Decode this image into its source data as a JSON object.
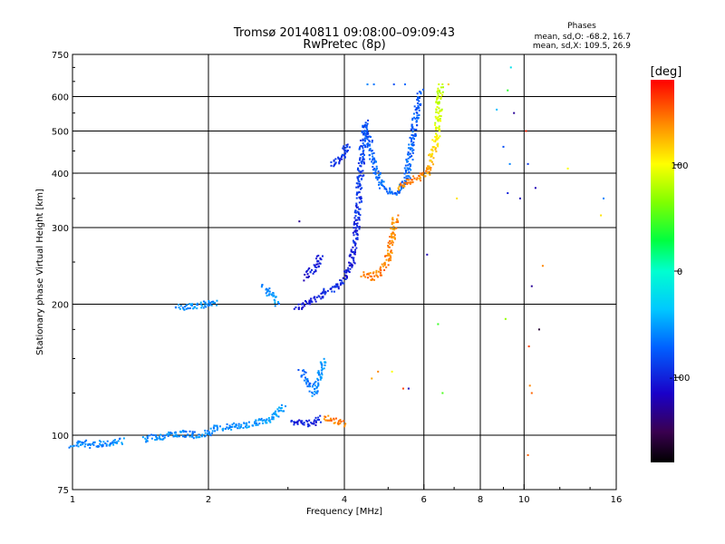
{
  "chart_data": {
    "type": "scatter",
    "title": "Tromsø 20140811 09:08:00–09:09:43",
    "subtitle": "RwPretec (8p)",
    "stats": {
      "heading": "Phases",
      "line_o": "mean, sd,O: -68.2, 16.7",
      "line_x": "mean, sd,X: 109.5, 26.9"
    },
    "xlabel": "Frequency [MHz]",
    "ylabel": "Stationary phase Virtual Height [km]",
    "x_scale": "log",
    "y_scale": "log",
    "xlim": [
      1,
      16
    ],
    "ylim": [
      75,
      750
    ],
    "x_ticks": [
      1,
      2,
      4,
      6,
      8,
      10,
      16
    ],
    "x_tick_labels": [
      "1",
      "2",
      "4",
      "6",
      "8",
      "10",
      "16"
    ],
    "y_ticks": [
      75,
      100,
      200,
      300,
      400,
      500,
      600,
      750
    ],
    "y_tick_labels": [
      "75",
      "100",
      "200",
      "300",
      "400",
      "500",
      "600",
      "750"
    ],
    "grid_x": [
      2,
      4,
      6,
      8,
      10
    ],
    "grid_y": [
      100,
      200,
      300,
      400,
      500,
      600
    ],
    "colorbar": {
      "label": "[deg]",
      "range": [
        -180,
        180
      ],
      "ticks": [
        100,
        0,
        -100
      ],
      "tick_labels": [
        "100",
        "0",
        "-100"
      ]
    },
    "segments": [
      {
        "points": [
          [
            1.0,
            95,
            -60
          ],
          [
            1.05,
            96,
            -62
          ],
          [
            1.1,
            95,
            -58
          ],
          [
            1.2,
            96,
            -60
          ],
          [
            1.3,
            97,
            -55
          ]
        ]
      },
      {
        "points": [
          [
            1.45,
            98,
            -58
          ],
          [
            1.55,
            99,
            -62
          ],
          [
            1.65,
            100,
            -56
          ],
          [
            1.8,
            101,
            -60
          ],
          [
            1.9,
            100,
            -58
          ],
          [
            2.0,
            101,
            -62
          ],
          [
            2.05,
            103,
            -55
          ],
          [
            2.1,
            104,
            -58
          ]
        ]
      },
      {
        "points": [
          [
            2.1,
            104,
            -55
          ],
          [
            2.3,
            105,
            -57
          ],
          [
            2.5,
            106,
            -52
          ],
          [
            2.7,
            108,
            -55
          ],
          [
            2.85,
            112,
            -50
          ],
          [
            2.95,
            116,
            -48
          ]
        ]
      },
      {
        "points": [
          [
            3.05,
            108,
            -95
          ],
          [
            3.15,
            107,
            -100
          ],
          [
            3.3,
            106,
            -98
          ],
          [
            3.45,
            107,
            -102
          ],
          [
            3.55,
            110,
            -96
          ]
        ]
      },
      {
        "points": [
          [
            3.2,
            140,
            -70
          ],
          [
            3.35,
            130,
            -65
          ],
          [
            3.45,
            125,
            -60
          ],
          [
            3.55,
            140,
            -55
          ],
          [
            3.6,
            150,
            -50
          ]
        ]
      },
      {
        "points": [
          [
            3.6,
            110,
            140
          ],
          [
            3.75,
            108,
            145
          ],
          [
            3.9,
            107,
            142
          ],
          [
            4.0,
            106,
            150
          ]
        ]
      },
      {
        "points": [
          [
            1.72,
            196,
            -60
          ],
          [
            2.0,
            200,
            -55
          ],
          [
            2.1,
            201,
            -58
          ]
        ]
      },
      {
        "points": [
          [
            2.65,
            220,
            -60
          ],
          [
            2.75,
            210,
            -55
          ],
          [
            2.85,
            200,
            -58
          ]
        ]
      },
      {
        "points": [
          [
            3.15,
            195,
            -100
          ],
          [
            3.25,
            200,
            -110
          ],
          [
            3.4,
            205,
            -105
          ],
          [
            3.6,
            212,
            -100
          ],
          [
            3.8,
            218,
            -95
          ],
          [
            4.0,
            228,
            -100
          ],
          [
            4.15,
            250,
            -105
          ],
          [
            4.22,
            280,
            -100
          ],
          [
            4.28,
            320,
            -95
          ],
          [
            4.33,
            380,
            -90
          ],
          [
            4.38,
            450,
            -85
          ],
          [
            4.45,
            520,
            -80
          ],
          [
            4.55,
            470,
            -75
          ],
          [
            4.7,
            400,
            -70
          ],
          [
            4.9,
            370,
            -68
          ],
          [
            5.1,
            360,
            -70
          ],
          [
            5.3,
            362,
            -72
          ],
          [
            5.5,
            390,
            -70
          ],
          [
            5.65,
            470,
            -72
          ],
          [
            5.8,
            560,
            -75
          ],
          [
            5.9,
            620,
            -78
          ]
        ]
      },
      {
        "points": [
          [
            3.3,
            230,
            -110
          ],
          [
            3.4,
            240,
            -105
          ],
          [
            3.5,
            250,
            -100
          ],
          [
            3.55,
            260,
            -98
          ]
        ]
      },
      {
        "points": [
          [
            4.4,
            235,
            140
          ],
          [
            4.6,
            230,
            145
          ],
          [
            4.8,
            238,
            142
          ],
          [
            5.0,
            255,
            140
          ],
          [
            5.1,
            280,
            138
          ],
          [
            5.2,
            320,
            135
          ]
        ]
      },
      {
        "points": [
          [
            5.3,
            370,
            140
          ],
          [
            5.5,
            380,
            145
          ],
          [
            5.8,
            390,
            140
          ],
          [
            6.1,
            400,
            138
          ],
          [
            6.2,
            420,
            130
          ],
          [
            6.35,
            460,
            110
          ],
          [
            6.45,
            520,
            90
          ],
          [
            6.5,
            600,
            85
          ],
          [
            6.55,
            640,
            80
          ]
        ]
      },
      {
        "points": [
          [
            3.75,
            420,
            -95
          ],
          [
            3.9,
            430,
            -100
          ],
          [
            4.0,
            440,
            -92
          ],
          [
            4.05,
            470,
            -90
          ]
        ]
      }
    ],
    "scatter": [
      [
        3.18,
        310,
        -130
      ],
      [
        4.5,
        640,
        -60
      ],
      [
        4.65,
        640,
        -65
      ],
      [
        5.15,
        640,
        -80
      ],
      [
        5.45,
        640,
        -70
      ],
      [
        6.1,
        260,
        -120
      ],
      [
        6.45,
        180,
        45
      ],
      [
        6.6,
        125,
        50
      ],
      [
        6.8,
        640,
        120
      ],
      [
        7.1,
        350,
        110
      ],
      [
        5.1,
        140,
        100
      ],
      [
        4.6,
        135,
        130
      ],
      [
        4.75,
        140,
        140
      ],
      [
        5.4,
        128,
        160
      ],
      [
        5.55,
        128,
        -120
      ],
      [
        8.7,
        560,
        -40
      ],
      [
        9.0,
        460,
        -80
      ],
      [
        9.2,
        620,
        40
      ],
      [
        9.3,
        420,
        -60
      ],
      [
        9.1,
        185,
        70
      ],
      [
        9.2,
        360,
        -100
      ],
      [
        9.35,
        700,
        -20
      ],
      [
        9.5,
        550,
        -130
      ],
      [
        9.8,
        350,
        -120
      ],
      [
        10.1,
        500,
        170
      ],
      [
        10.2,
        420,
        -90
      ],
      [
        10.25,
        160,
        160
      ],
      [
        10.3,
        130,
        140
      ],
      [
        10.4,
        125,
        150
      ],
      [
        10.2,
        90,
        150
      ],
      [
        10.4,
        220,
        -130
      ],
      [
        10.6,
        370,
        -120
      ],
      [
        10.8,
        175,
        -160
      ],
      [
        11.0,
        245,
        140
      ],
      [
        12.5,
        410,
        100
      ],
      [
        14.8,
        320,
        110
      ],
      [
        15.0,
        350,
        -60
      ]
    ]
  }
}
